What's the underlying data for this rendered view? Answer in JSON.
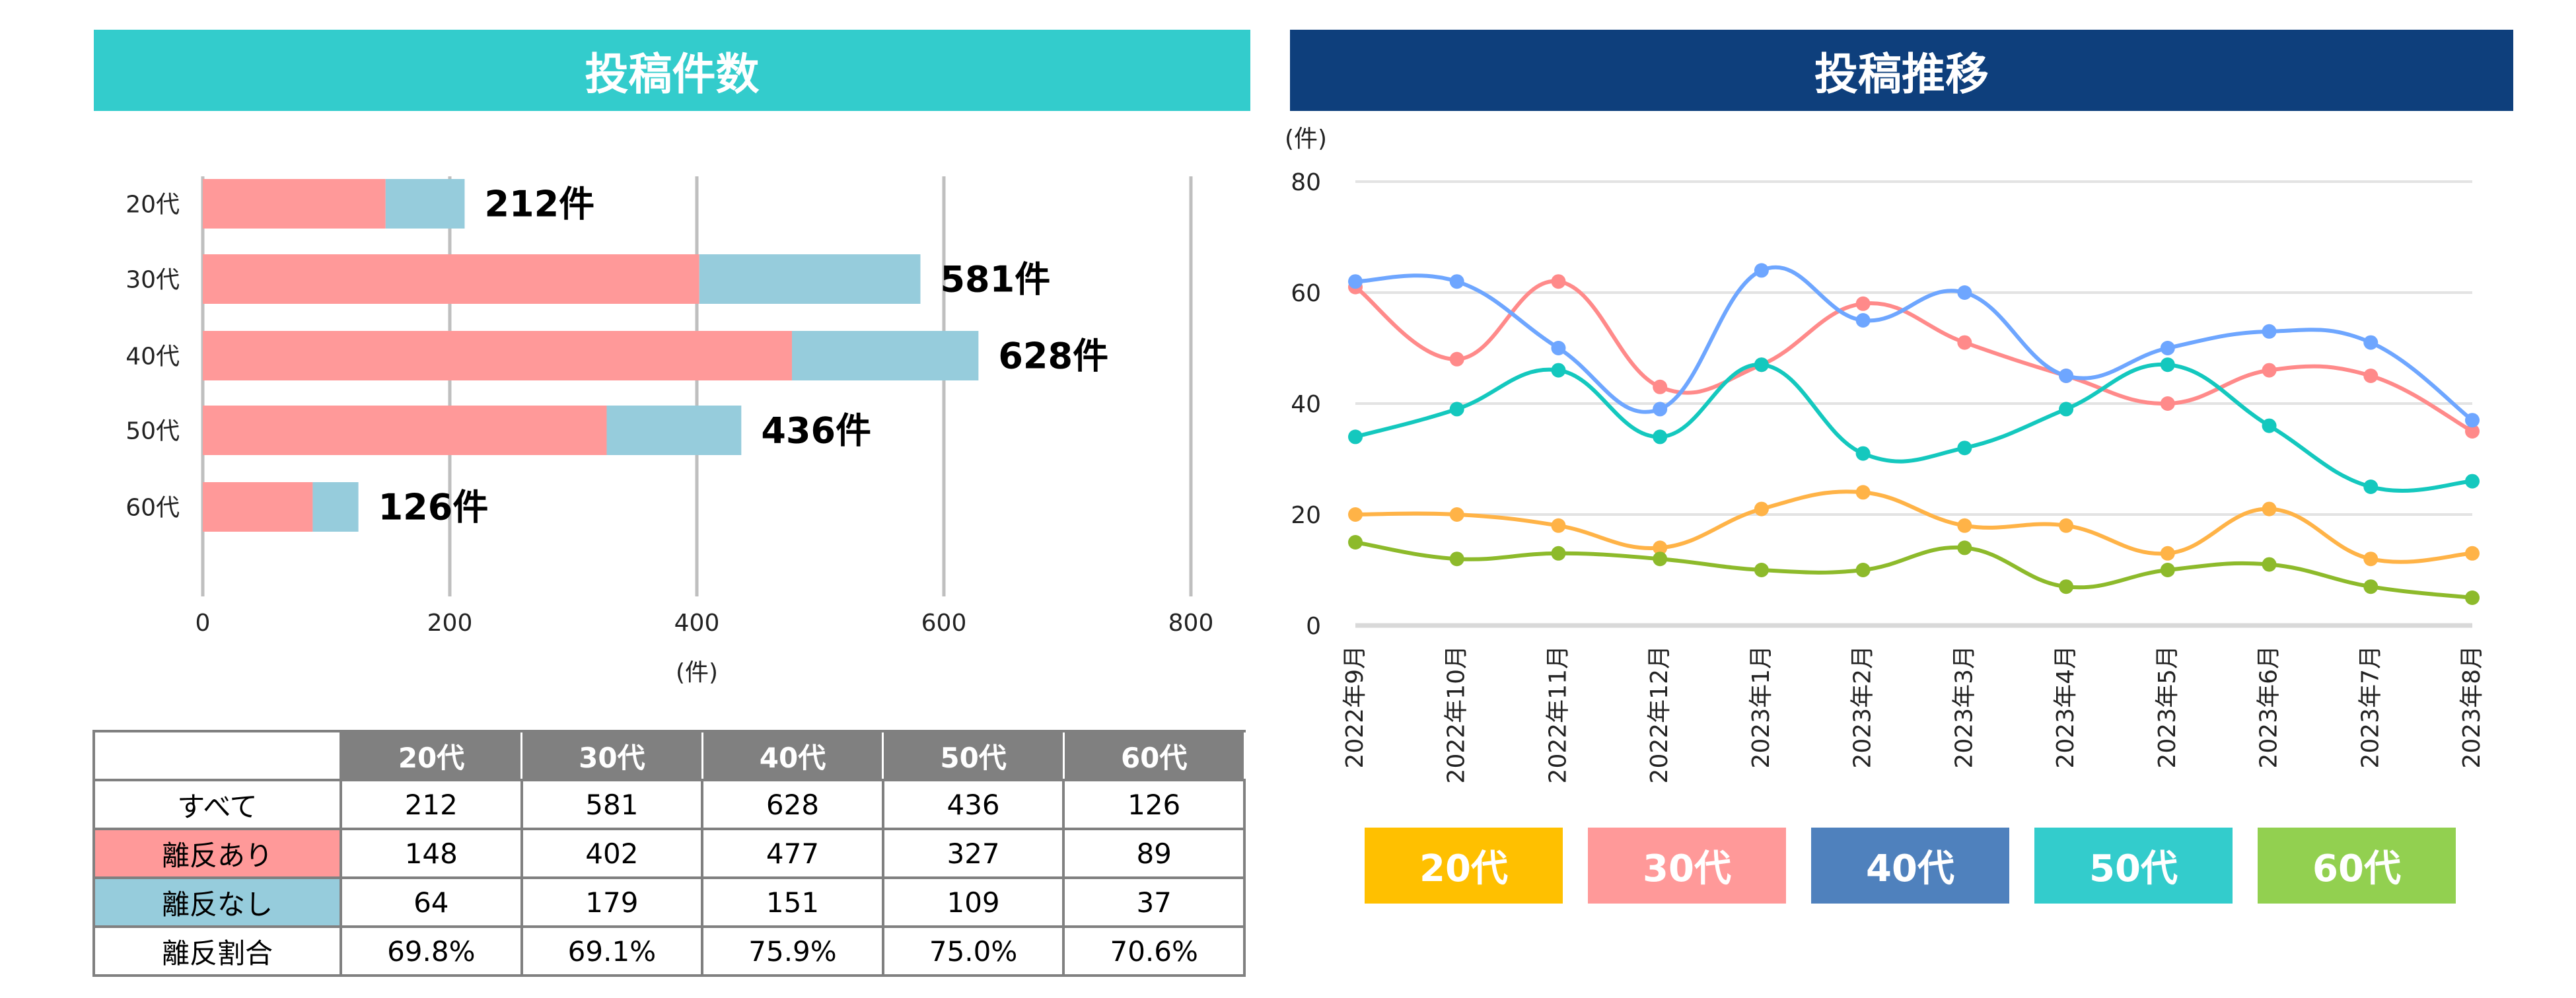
{
  "left_panel": {
    "title": "投稿件数",
    "title_color": "#33CCCC"
  },
  "right_panel": {
    "title": "投稿推移",
    "title_color": "#0E3F7C"
  },
  "table": {
    "headers": [
      "",
      "20代",
      "30代",
      "40代",
      "50代",
      "60代"
    ],
    "rows": [
      {
        "label": "すべて",
        "label_bg": "#FFFFFF",
        "values": [
          "212",
          "581",
          "628",
          "436",
          "126"
        ]
      },
      {
        "label": "離反あり",
        "label_bg": "#FF9999",
        "values": [
          "148",
          "402",
          "477",
          "327",
          "89"
        ]
      },
      {
        "label": "離反なし",
        "label_bg": "#96CCDC",
        "values": [
          "64",
          "179",
          "151",
          "109",
          "37"
        ]
      },
      {
        "label": "離反割合",
        "label_bg": "#FFFFFF",
        "values": [
          "69.8%",
          "69.1%",
          "75.9%",
          "75.0%",
          "70.6%"
        ]
      }
    ]
  },
  "legend": [
    {
      "label": "20代",
      "color": "#FFC000"
    },
    {
      "label": "30代",
      "color": "#FF9999"
    },
    {
      "label": "40代",
      "color": "#4F81BD"
    },
    {
      "label": "50代",
      "color": "#33CCCC"
    },
    {
      "label": "60代",
      "color": "#92D050"
    }
  ],
  "chart_data": [
    {
      "type": "bar",
      "orientation": "horizontal",
      "stacked": true,
      "title": "投稿件数",
      "xlabel": "(件)",
      "ylabel": "",
      "categories": [
        "20代",
        "30代",
        "40代",
        "50代",
        "60代"
      ],
      "series": [
        {
          "name": "離反あり",
          "color": "#FF9999",
          "values": [
            148,
            402,
            477,
            327,
            89
          ]
        },
        {
          "name": "離反なし",
          "color": "#96CCDC",
          "values": [
            64,
            179,
            151,
            109,
            37
          ]
        }
      ],
      "totals": [
        212,
        581,
        628,
        436,
        126
      ],
      "data_labels": [
        "212件",
        "581件",
        "628件",
        "436件",
        "126件"
      ],
      "xlim": [
        0,
        800
      ],
      "xticks": [
        0,
        200,
        400,
        600,
        800
      ],
      "grid": true,
      "legend": "none"
    },
    {
      "type": "line",
      "smooth": true,
      "title": "投稿推移",
      "ylabel": "(件)",
      "xlabel": "",
      "x": [
        "2022年9月",
        "2022年10月",
        "2022年11月",
        "2022年12月",
        "2023年1月",
        "2023年2月",
        "2023年3月",
        "2023年4月",
        "2023年5月",
        "2023年6月",
        "2023年7月",
        "2023年8月"
      ],
      "ylim": [
        0,
        80
      ],
      "yticks": [
        0,
        20,
        40,
        60,
        80
      ],
      "grid": true,
      "legend": "bottom",
      "series": [
        {
          "name": "20代",
          "color": "#FFB347",
          "values": [
            20,
            20,
            18,
            14,
            21,
            24,
            18,
            18,
            13,
            21,
            12,
            13
          ]
        },
        {
          "name": "30代",
          "color": "#FF8A8A",
          "values": [
            61,
            48,
            62,
            43,
            47,
            58,
            51,
            45,
            40,
            46,
            45,
            35
          ]
        },
        {
          "name": "40代",
          "color": "#6EA6FF",
          "values": [
            62,
            62,
            50,
            39,
            64,
            55,
            60,
            45,
            50,
            53,
            51,
            37
          ]
        },
        {
          "name": "50代",
          "color": "#14C8BE",
          "values": [
            34,
            39,
            46,
            34,
            47,
            31,
            32,
            39,
            47,
            36,
            25,
            26
          ]
        },
        {
          "name": "60代",
          "color": "#8DBA2B",
          "values": [
            15,
            12,
            13,
            12,
            10,
            10,
            14,
            7,
            10,
            11,
            7,
            5
          ]
        }
      ]
    }
  ]
}
